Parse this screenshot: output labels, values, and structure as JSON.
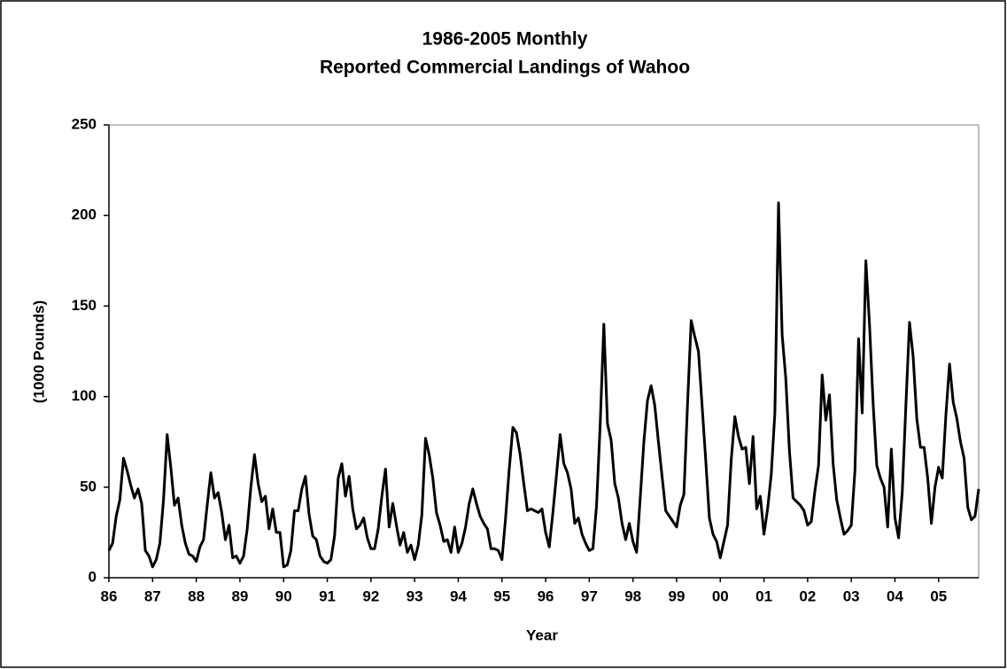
{
  "chart_data": {
    "type": "line",
    "title": [
      "1986-2005 Monthly",
      "Reported Commercial Landings of Wahoo"
    ],
    "xlabel": "Year",
    "ylabel": "(1000 Pounds)",
    "categories": [
      "86",
      null,
      null,
      null,
      null,
      null,
      null,
      null,
      null,
      null,
      null,
      null,
      "87",
      null,
      null,
      null,
      null,
      null,
      null,
      null,
      null,
      null,
      null,
      null,
      "88",
      null,
      null,
      null,
      null,
      null,
      null,
      null,
      null,
      null,
      null,
      null,
      "89",
      null,
      null,
      null,
      null,
      null,
      null,
      null,
      null,
      null,
      null,
      null,
      "90",
      null,
      null,
      null,
      null,
      null,
      null,
      null,
      null,
      null,
      null,
      null,
      "91",
      null,
      null,
      null,
      null,
      null,
      null,
      null,
      null,
      null,
      null,
      null,
      "92",
      null,
      null,
      null,
      null,
      null,
      null,
      null,
      null,
      null,
      null,
      null,
      "93",
      null,
      null,
      null,
      null,
      null,
      null,
      null,
      null,
      null,
      null,
      null,
      "94",
      null,
      null,
      null,
      null,
      null,
      null,
      null,
      null,
      null,
      null,
      null,
      "95",
      null,
      null,
      null,
      null,
      null,
      null,
      null,
      null,
      null,
      null,
      null,
      "96",
      null,
      null,
      null,
      null,
      null,
      null,
      null,
      null,
      null,
      null,
      null,
      "97",
      null,
      null,
      null,
      null,
      null,
      null,
      null,
      null,
      null,
      null,
      null,
      "98",
      null,
      null,
      null,
      null,
      null,
      null,
      null,
      null,
      null,
      null,
      null,
      "99",
      null,
      null,
      null,
      null,
      null,
      null,
      null,
      null,
      null,
      null,
      null,
      "00",
      null,
      null,
      null,
      null,
      null,
      null,
      null,
      null,
      null,
      null,
      null,
      "01",
      null,
      null,
      null,
      null,
      null,
      null,
      null,
      null,
      null,
      null,
      null,
      "02",
      null,
      null,
      null,
      null,
      null,
      null,
      null,
      null,
      null,
      null,
      null,
      "03",
      null,
      null,
      null,
      null,
      null,
      null,
      null,
      null,
      null,
      null,
      null,
      "04",
      null,
      null,
      null,
      null,
      null,
      null,
      null,
      null,
      null,
      null,
      null,
      "05",
      null,
      null,
      null,
      null,
      null,
      null,
      null,
      null,
      null,
      null,
      null
    ],
    "values": [
      15,
      19,
      34,
      43,
      66,
      59,
      51,
      44,
      49,
      41,
      15,
      12,
      6,
      10,
      19,
      43,
      79,
      61,
      40,
      44,
      29,
      19,
      13,
      12,
      9,
      17,
      21,
      40,
      58,
      44,
      47,
      36,
      21,
      29,
      11,
      12,
      8,
      12,
      27,
      50,
      68,
      52,
      42,
      45,
      27,
      38,
      25,
      25,
      6,
      7,
      15,
      37,
      37,
      49,
      56,
      35,
      23,
      21,
      12,
      9,
      8,
      10,
      23,
      55,
      63,
      45,
      56,
      38,
      27,
      29,
      33,
      22,
      16,
      16,
      27,
      45,
      60,
      28,
      41,
      29,
      18,
      25,
      14,
      18,
      10,
      18,
      35,
      77,
      68,
      55,
      36,
      29,
      20,
      21,
      14,
      28,
      14,
      19,
      28,
      41,
      49,
      41,
      34,
      30,
      27,
      16,
      16,
      15,
      10,
      33,
      60,
      83,
      80,
      68,
      52,
      37,
      38,
      37,
      36,
      38,
      25,
      17,
      36,
      57,
      79,
      63,
      58,
      49,
      30,
      33,
      24,
      19,
      15,
      16,
      40,
      85,
      140,
      85,
      76,
      52,
      44,
      30,
      21,
      30,
      20,
      14,
      44,
      75,
      98,
      106,
      95,
      75,
      56,
      37,
      34,
      31,
      28,
      40,
      46,
      96,
      142,
      133,
      125,
      95,
      65,
      33,
      24,
      20,
      11,
      20,
      29,
      65,
      89,
      78,
      71,
      72,
      52,
      78,
      38,
      45,
      24,
      38,
      57,
      91,
      207,
      134,
      110,
      70,
      44,
      42,
      40,
      37,
      29,
      31,
      48,
      62,
      112,
      87,
      101,
      63,
      43,
      33,
      24,
      26,
      29,
      59,
      132,
      91,
      175,
      140,
      96,
      62,
      55,
      50,
      28,
      71,
      33,
      22,
      47,
      95,
      141,
      122,
      88,
      72,
      72,
      55,
      30,
      50,
      61,
      55,
      90,
      118,
      97,
      88,
      75,
      66,
      39,
      32,
      34,
      49
    ],
    "color": "#000000",
    "ylim": [
      0,
      250
    ],
    "yticks": [
      0,
      50,
      100,
      150,
      200,
      250
    ],
    "grid": false
  }
}
